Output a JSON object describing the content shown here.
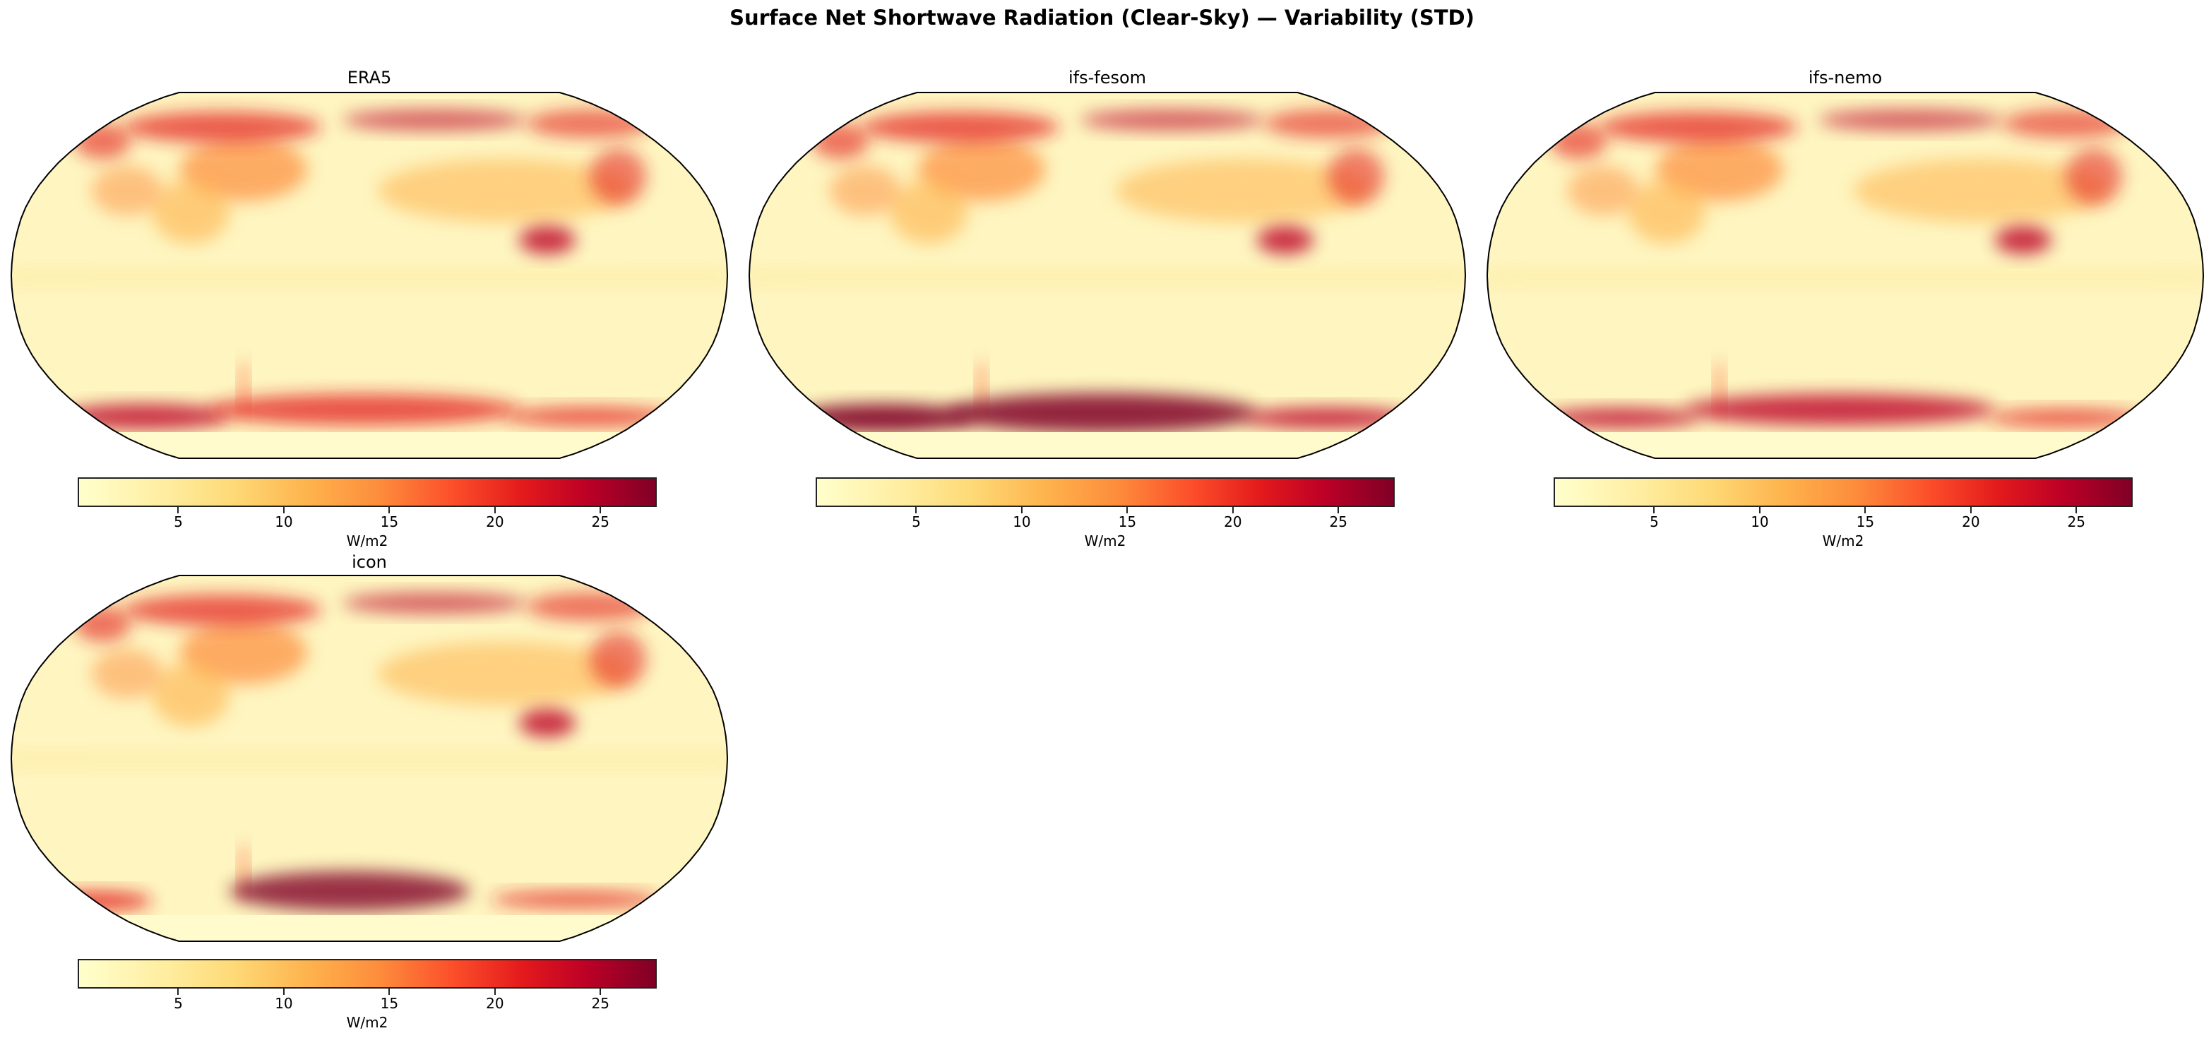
{
  "figure": {
    "title": "Surface Net Shortwave Radiation (Clear-Sky) — Variability (STD)"
  },
  "colormap": {
    "name": "YlOrRd",
    "colors": [
      "#ffffcc",
      "#ffeda0",
      "#fed976",
      "#feb24c",
      "#fd8d3c",
      "#fc4e2a",
      "#e31a1c",
      "#bd0026",
      "#800026"
    ]
  },
  "chart_data": {
    "type": "heatmap",
    "projection": "Robinson",
    "colorbar": {
      "label": "W/m2",
      "range": [
        0.3,
        27.6
      ],
      "ticks": [
        5,
        10,
        15,
        20,
        25
      ],
      "tick_labels": [
        "5",
        "10",
        "15",
        "20",
        "25"
      ],
      "orientation": "horizontal"
    },
    "panels": [
      {
        "title": "ERA5"
      },
      {
        "title": "ifs-fesom"
      },
      {
        "title": "ifs-nemo"
      },
      {
        "title": "icon"
      }
    ]
  }
}
